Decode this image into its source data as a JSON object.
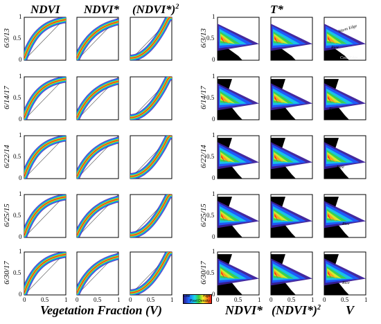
{
  "figure": {
    "left_group_titles": [
      "NDVI",
      "NDVI*",
      "(NDVI*)"
    ],
    "left_superscript": "2",
    "right_group_title": "T*",
    "row_dates": [
      "6/3/13",
      "6/14/17",
      "6/22/14",
      "6/25/15",
      "6/30/17"
    ],
    "left_x_title": "Vegetation Fraction (V)",
    "right_x_titles": [
      "NDVI*",
      "(NDVI*)",
      "V"
    ],
    "right_superscript": "2",
    "y_ticks": [
      "1",
      "0.5",
      "0"
    ],
    "x_ticks": [
      "0",
      "0.5",
      "1"
    ],
    "annotations": {
      "warm_edge": "Warm Edge",
      "cold_edge": "Cold Edge",
      "rice": "Rice"
    },
    "legend": {
      "low": "Low",
      "high": "High",
      "label": "Pixel Density"
    }
  },
  "chart_data": [
    {
      "type": "heatmap",
      "title": "",
      "note": "Left group: 5 rows × 3 columns of pixel-density scatter heatmaps; y axes NDVI, NDVI*, (NDVI*)^2 vs Vegetation Fraction (V). Each panel shows a 1:1 diagonal line.",
      "xlabel": "Vegetation Fraction (V)",
      "xlim": [
        0,
        1
      ],
      "ylim": [
        0,
        1
      ],
      "x_tick_labels": [
        "0",
        "0.5",
        "1"
      ],
      "y_tick_labels": [
        "0",
        "0.5",
        "1"
      ],
      "columns": [
        "NDVI",
        "NDVI*",
        "(NDVI*)^2"
      ],
      "rows": [
        "6/3/13",
        "6/14/17",
        "6/22/14",
        "6/25/15",
        "6/30/17"
      ]
    },
    {
      "type": "heatmap",
      "title": "",
      "note": "Right group: 5 rows × 3 columns of pixel-density heatmaps of T* vs NDVI*, (NDVI*)^2 and V; triangular scatter with warm and cold edges; Rice cluster labeled.",
      "ylabel": "T*",
      "x_labels": [
        "NDVI*",
        "(NDVI*)^2",
        "V"
      ],
      "xlim": [
        0,
        1
      ],
      "ylim": [
        0,
        1
      ],
      "x_tick_labels": [
        "0",
        "0.5",
        "1"
      ],
      "y_tick_labels": [
        "0",
        "0.5",
        "1"
      ],
      "rows": [
        "6/3/13",
        "6/14/17",
        "6/22/14",
        "6/25/15",
        "6/30/17"
      ]
    }
  ]
}
